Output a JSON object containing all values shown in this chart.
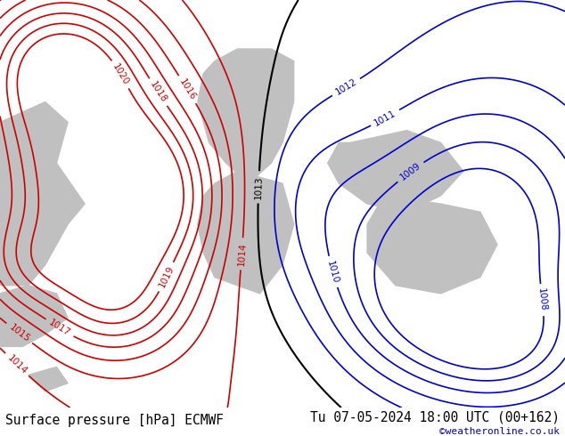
{
  "title_left": "Surface pressure [hPa] ECMWF",
  "title_right": "Tu 07-05-2024 18:00 UTC (00+162)",
  "copyright": "©weatheronline.co.uk",
  "bg_color": "#b3e88a",
  "map_bg": "#b3e88a",
  "fig_width": 6.34,
  "fig_height": 4.9,
  "dpi": 100,
  "bottom_bar_color": "#d4d4d4",
  "bottom_bar_height": 0.065,
  "title_fontsize": 10.5,
  "copyright_color": "#0000cc",
  "land_color": "#b3e88a",
  "water_color": "#c8c8c8",
  "contour_red_color": "#cc0000",
  "contour_black_color": "#000000",
  "contour_blue_color": "#0000cc",
  "label_fontsize": 7.5
}
